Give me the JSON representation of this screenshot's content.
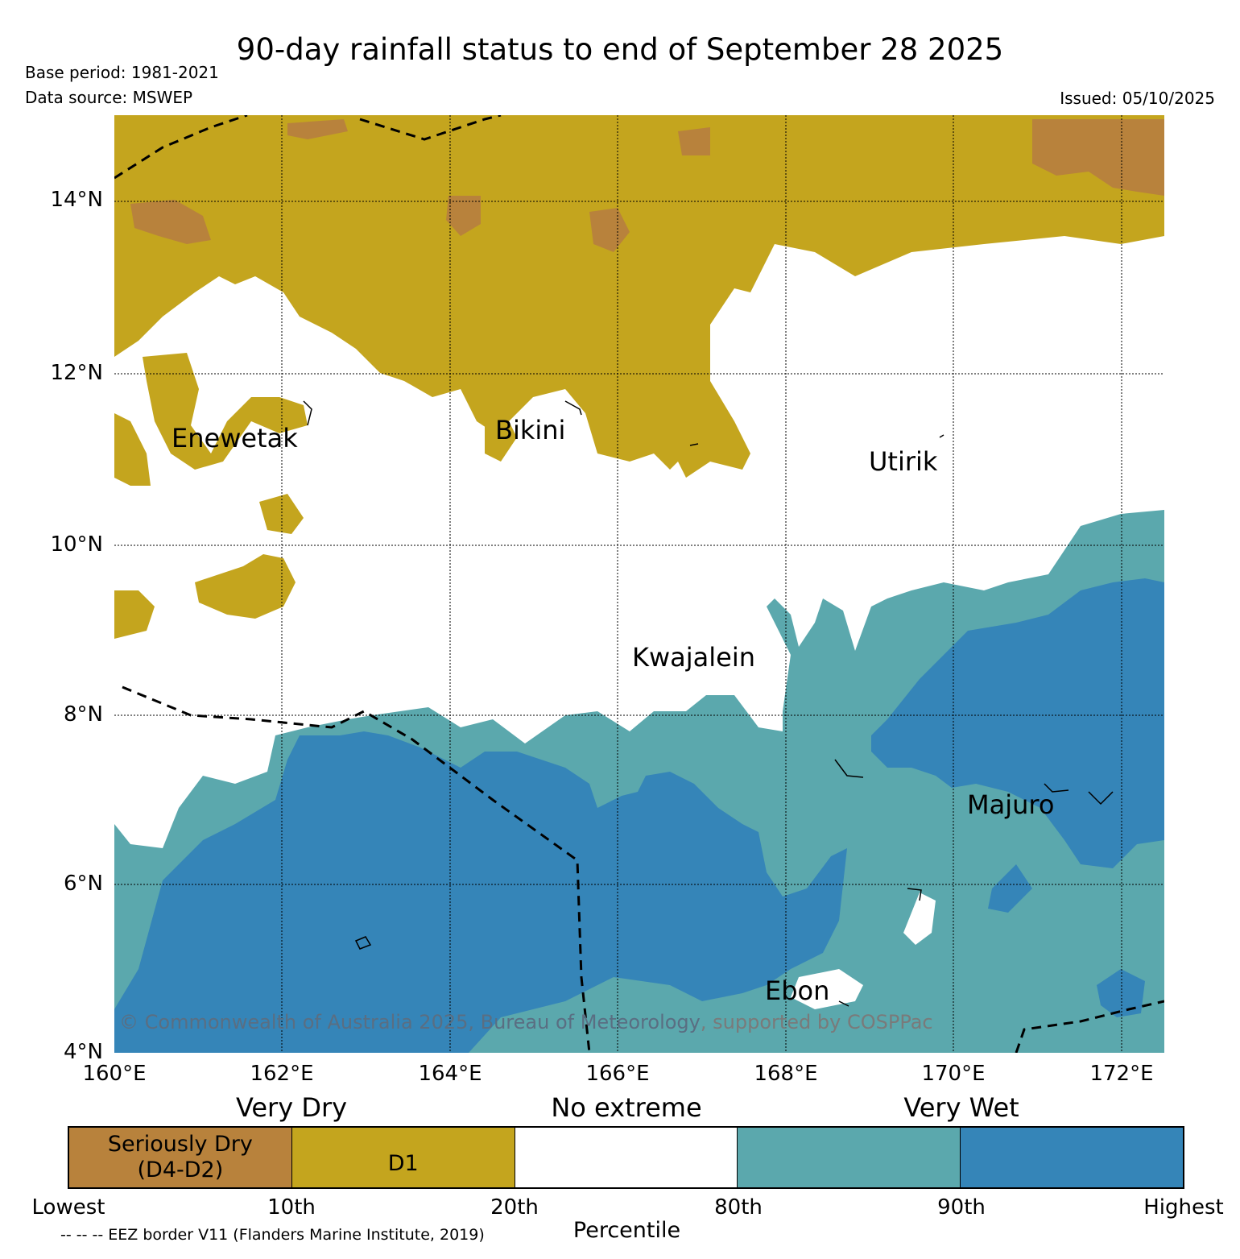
{
  "header": {
    "title": "90-day rainfall status to end of September 28 2025",
    "base_period": "Base period: 1981-2021",
    "data_source": "Data source: MSWEP",
    "issued": "Issued: 05/10/2025"
  },
  "axes": {
    "lat_labels": [
      "14°N",
      "12°N",
      "10°N",
      "8°N",
      "6°N",
      "4°N"
    ],
    "lon_labels": [
      "160°E",
      "162°E",
      "164°E",
      "166°E",
      "168°E",
      "170°E",
      "172°E"
    ]
  },
  "places": {
    "enewetak": "Enewetak",
    "bikini": "Bikini",
    "utirik": "Utirik",
    "kwajalein": "Kwajalein",
    "majuro": "Majuro",
    "ebon": "Ebon"
  },
  "copyright": {
    "text_main": "© Commonwealth of Australia 2025, Bureau of Meteorology",
    "text_supported": ", supported by COSPPac"
  },
  "legend": {
    "group_very_dry": "Very Dry",
    "group_no_extreme": "No extreme",
    "group_very_wet": "Very Wet",
    "categories": [
      {
        "label_line1": "Seriously Dry",
        "label_line2": "(D4-D2)",
        "color": "#b8823c"
      },
      {
        "label_line1": "D1",
        "label_line2": "",
        "color": "#c4a51e"
      },
      {
        "label_line1": "",
        "label_line2": "",
        "color": "#ffffff"
      },
      {
        "label_line1": "",
        "label_line2": "",
        "color": "#5ba8ad"
      },
      {
        "label_line1": "",
        "label_line2": "",
        "color": "#3585b8"
      }
    ],
    "ticks": [
      "Lowest",
      "10th",
      "20th",
      "80th",
      "90th",
      "Highest"
    ],
    "axis_label": "Percentile",
    "eez_note": "-- -- -- EEZ border V11 (Flanders Marine Institute, 2019)"
  },
  "colors": {
    "seriously_dry": "#b8823c",
    "d1": "#c4a51e",
    "no_extreme": "#ffffff",
    "wet_80_90": "#5ba8ad",
    "wet_90_plus": "#3585b8"
  }
}
